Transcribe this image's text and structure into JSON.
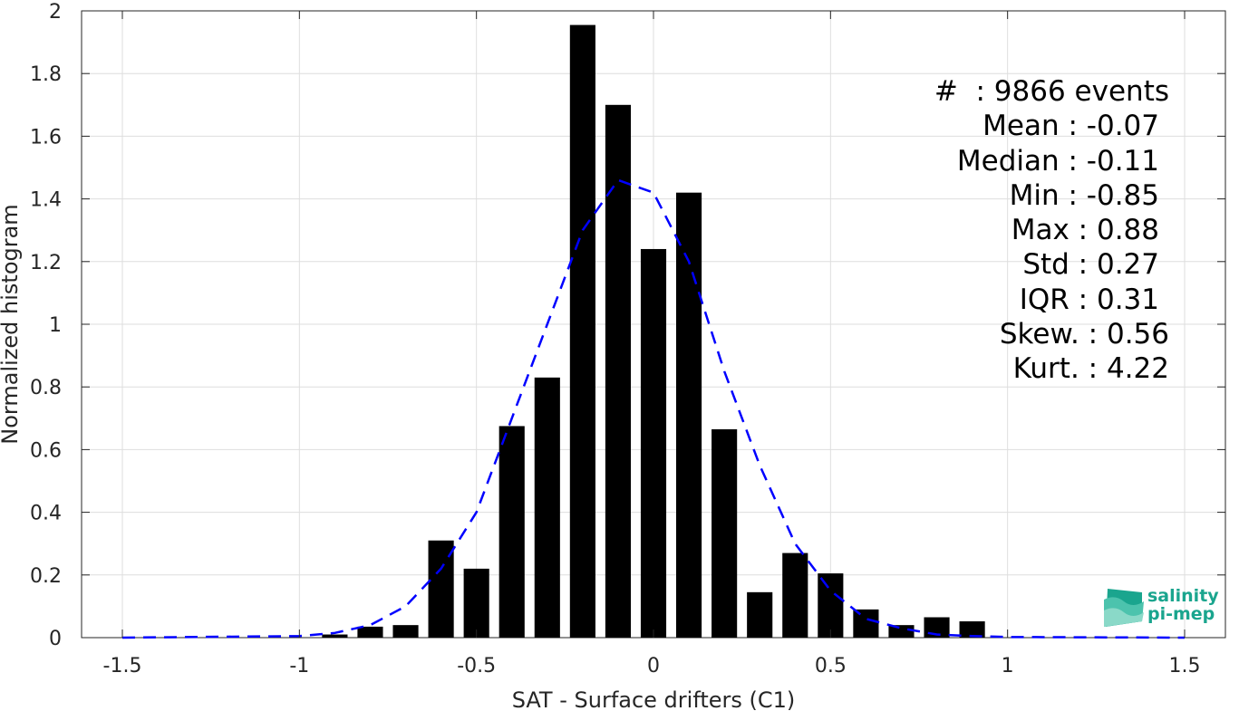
{
  "chart_data": {
    "type": "bar",
    "xlabel": "SAT - Surface drifters (C1)",
    "ylabel": "Normalized histogram",
    "xlim": [
      -1.5,
      1.5
    ],
    "ylim": [
      0,
      2
    ],
    "xticks": [
      "-1.5",
      "-1",
      "-0.5",
      "0",
      "0.5",
      "1",
      "1.5"
    ],
    "yticks": [
      "0",
      "0.2",
      "0.4",
      "0.6",
      "0.8",
      "1",
      "1.2",
      "1.4",
      "1.6",
      "1.8",
      "2"
    ],
    "grid": true,
    "bar_color": "#000000",
    "bins": [
      -0.9,
      -0.8,
      -0.7,
      -0.6,
      -0.5,
      -0.4,
      -0.3,
      -0.2,
      -0.1,
      0.0,
      0.1,
      0.2,
      0.3,
      0.4,
      0.5,
      0.6,
      0.7,
      0.8,
      0.9
    ],
    "values": [
      0.01,
      0.035,
      0.04,
      0.31,
      0.22,
      0.675,
      0.83,
      1.955,
      1.7,
      1.24,
      1.42,
      0.665,
      0.145,
      0.27,
      0.205,
      0.09,
      0.04,
      0.065,
      0.052
    ],
    "fit_curve": {
      "color": "#0000ff",
      "style": "dashed",
      "x": [
        -1.5,
        -1.0,
        -0.9,
        -0.8,
        -0.7,
        -0.6,
        -0.5,
        -0.4,
        -0.3,
        -0.2,
        -0.1,
        0.0,
        0.1,
        0.2,
        0.3,
        0.4,
        0.5,
        0.6,
        0.7,
        0.8,
        0.9,
        1.0,
        1.5
      ],
      "y": [
        0.0,
        0.005,
        0.015,
        0.04,
        0.1,
        0.22,
        0.4,
        0.7,
        1.0,
        1.3,
        1.46,
        1.42,
        1.2,
        0.85,
        0.55,
        0.3,
        0.15,
        0.06,
        0.03,
        0.01,
        0.005,
        0.002,
        0.0
      ]
    }
  },
  "stats": [
    "#  : 9866 events",
    "Mean : -0.07",
    "Median : -0.11",
    "Min : -0.85",
    "Max : 0.88",
    "Std : 0.27",
    "IQR : 0.31",
    "Skew. : 0.56",
    "Kurt. : 4.22"
  ],
  "logo": {
    "line1": "salinity",
    "line2": "pi-mep",
    "color": "#1aa58e"
  }
}
